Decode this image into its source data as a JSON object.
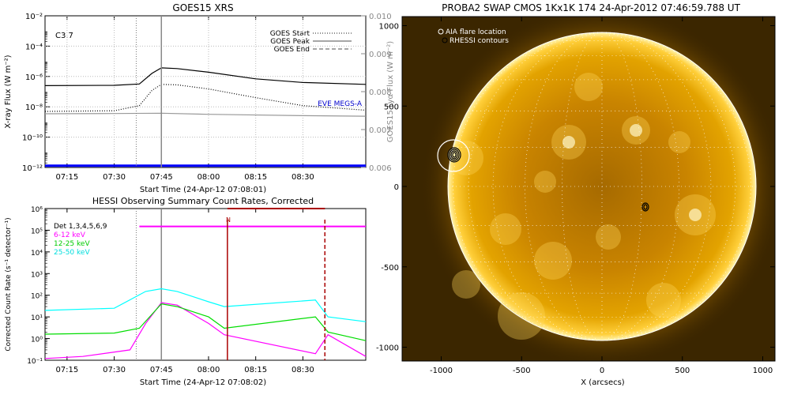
{
  "goes_panel": {
    "title": "GOES15 XRS",
    "class_label": "C3.7",
    "ylabel_left": "X-ray Flux (W m⁻²)",
    "ylabel_right": "GOES15 Lyα Flux (W m⁻²)",
    "xlabel": "Start Time (24-Apr-12 07:08:01)",
    "legend": [
      {
        "label": "GOES Start",
        "style": "dotted"
      },
      {
        "label": "GOES Peak",
        "style": "solid"
      },
      {
        "label": "GOES End",
        "style": "dashed"
      }
    ],
    "eve_label": "EVE MEGS-A",
    "x_ticks": [
      "07:15",
      "07:30",
      "07:45",
      "08:00",
      "08:15",
      "08:30"
    ],
    "y_ticks_left": [
      "10⁻²",
      "10⁻⁴",
      "10⁻⁶",
      "10⁻⁸",
      "10⁻¹⁰",
      "10⁻¹²"
    ],
    "y_ticks_right": [
      "0.010",
      "0.009",
      "0.008",
      "0.007",
      "0.006"
    ]
  },
  "hessi_panel": {
    "title": "HESSI Observing Summary Count Rates, Corrected",
    "ylabel": "Corrected Count Rate (s⁻¹ detector⁻¹)",
    "xlabel": "Start Time (24-Apr-12 07:08:02)",
    "legend": [
      {
        "label": "Det 1,3,4,5,6,9",
        "color": "#000000"
      },
      {
        "label": "6-12 keV",
        "color": "#ff00ff"
      },
      {
        "label": "12-25 keV",
        "color": "#00dd00"
      },
      {
        "label": "25-50 keV",
        "color": "#00ffff"
      }
    ],
    "n_label": "N",
    "x_ticks": [
      "07:15",
      "07:30",
      "07:45",
      "08:00",
      "08:15",
      "08:30"
    ],
    "y_ticks": [
      "10⁶",
      "10⁵",
      "10⁴",
      "10³",
      "10²",
      "10¹",
      "10⁰",
      "10⁻¹"
    ]
  },
  "swap_panel": {
    "title": "PROBA2 SWAP CMOS 1Kx1K 174 24-Apr-2012 07:46:59.788 UT",
    "legend": [
      {
        "label": "AIA flare location"
      },
      {
        "label": "RHESSI contours"
      }
    ],
    "xlabel": "X (arcsecs)",
    "x_ticks": [
      "-1000",
      "-500",
      "0",
      "500",
      "1000"
    ],
    "y_ticks": [
      "1000",
      "500",
      "0",
      "-500",
      "-1000"
    ]
  },
  "chart_data": [
    {
      "type": "line",
      "title": "GOES15 XRS",
      "xlabel": "Start Time (24-Apr-12 07:08:01)",
      "ylabel": "X-ray Flux (W m⁻²)",
      "y_scale": "log",
      "ylim": [
        1e-12,
        0.01
      ],
      "x_range": [
        "07:08",
        "08:50"
      ],
      "y2label": "GOES15 Lyα Flux (W m⁻²)",
      "y2lim": [
        0.006,
        0.01
      ],
      "markers": {
        "goes_start": "07:37",
        "goes_peak": "07:45"
      },
      "series": [
        {
          "name": "",
          "color": "#000000",
          "x": [
            "07:08",
            "07:30",
            "07:38",
            "07:42",
            "07:45",
            "07:50",
            "08:00",
            "08:15",
            "08:30",
            "08:50"
          ],
          "values": [
            2.5e-07,
            2.6e-07,
            3.2e-07,
            1.6e-06,
            3.7e-06,
            3.3e-06,
            1.9e-06,
            7e-07,
            4e-07,
            3e-07
          ]
        },
        {
          "name": "",
          "color": "#000000",
          "style": "dotted",
          "x": [
            "07:08",
            "07:30",
            "07:38",
            "07:42",
            "07:45",
            "07:50",
            "08:00",
            "08:15",
            "08:30",
            "08:50"
          ],
          "values": [
            5e-09,
            5.5e-09,
            1.2e-08,
            1.2e-07,
            3e-07,
            2.8e-07,
            1.5e-07,
            4e-08,
            1.2e-08,
            6e-09
          ]
        },
        {
          "name": "",
          "color": "#999999",
          "x": [
            "07:08",
            "07:30",
            "07:45",
            "08:00",
            "08:30",
            "08:50"
          ],
          "values": [
            3.5e-09,
            3.6e-09,
            3.8e-09,
            3.2e-09,
            2.6e-09,
            2.4e-09
          ]
        },
        {
          "name": "EVE MEGS-A",
          "color": "#0000ff",
          "x": [
            "07:08",
            "08:50"
          ],
          "values": [
            1.3e-12,
            1.3e-12
          ]
        }
      ]
    },
    {
      "type": "line",
      "title": "HESSI Observing Summary Count Rates, Corrected",
      "xlabel": "Start Time (24-Apr-12 07:08:02)",
      "ylabel": "Corrected Count Rate (s⁻¹ detector⁻¹)",
      "y_scale": "log",
      "ylim": [
        0.1,
        1000000
      ],
      "x_range": [
        "07:08",
        "08:50"
      ],
      "series": [
        {
          "name": "6-12 keV",
          "color": "#ff00ff",
          "x": [
            "07:08",
            "07:20",
            "07:35",
            "07:40",
            "07:45",
            "07:50",
            "08:00",
            "08:05",
            "08:34",
            "08:38",
            "08:50"
          ],
          "values": [
            0.12,
            0.15,
            0.3,
            5,
            45,
            35,
            5,
            1.5,
            0.2,
            1.5,
            0.15
          ]
        },
        {
          "name": "12-25 keV",
          "color": "#00dd00",
          "x": [
            "07:08",
            "07:30",
            "07:38",
            "07:45",
            "07:50",
            "08:00",
            "08:05",
            "08:34",
            "08:38",
            "08:50"
          ],
          "values": [
            1.6,
            1.8,
            3,
            40,
            30,
            10,
            3,
            10,
            2,
            0.8
          ]
        },
        {
          "name": "25-50 keV",
          "color": "#00ffff",
          "x": [
            "07:08",
            "07:30",
            "07:40",
            "07:45",
            "07:50",
            "08:00",
            "08:05",
            "08:34",
            "08:38",
            "08:50"
          ],
          "values": [
            20,
            25,
            150,
            200,
            150,
            50,
            30,
            60,
            10,
            6
          ]
        },
        {
          "name": "",
          "color": "#ff00ff",
          "x": [
            "07:38",
            "08:04",
            "08:37",
            "08:50"
          ],
          "values": [
            150000,
            150000,
            150000,
            150000
          ]
        },
        {
          "name": "",
          "color": "#aa0000",
          "x": [
            "08:06",
            "08:37"
          ],
          "values": [
            1000000,
            1000000
          ]
        }
      ],
      "markers": {
        "goes_start": "07:37",
        "goes_peak": "07:45",
        "night_start": "08:06",
        "night_end": "08:37"
      }
    }
  ]
}
